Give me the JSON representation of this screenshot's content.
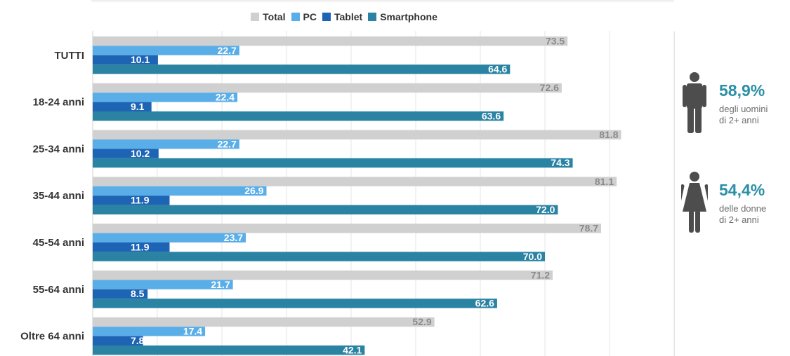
{
  "legend": [
    {
      "label": "Total",
      "color": "#d0d0d0"
    },
    {
      "label": "PC",
      "color": "#5aaee8"
    },
    {
      "label": "Tablet",
      "color": "#1e64b4"
    },
    {
      "label": "Smartphone",
      "color": "#2a83a3"
    }
  ],
  "chart_data": {
    "type": "bar",
    "orientation": "horizontal",
    "title": "",
    "xlabel": "",
    "ylabel": "",
    "xlim": [
      0,
      90
    ],
    "grid": true,
    "legend_position": "top",
    "categories": [
      "TUTTI",
      "18-24 anni",
      "25-34 anni",
      "35-44 anni",
      "45-54 anni",
      "55-64 anni",
      "Oltre 64 anni"
    ],
    "series": [
      {
        "name": "Total",
        "color": "#d0d0d0",
        "values": [
          73.5,
          72.6,
          81.8,
          81.1,
          78.7,
          71.2,
          52.9
        ]
      },
      {
        "name": "PC",
        "color": "#5aaee8",
        "values": [
          22.7,
          22.4,
          22.7,
          26.9,
          23.7,
          21.7,
          17.4
        ]
      },
      {
        "name": "Tablet",
        "color": "#1e64b4",
        "values": [
          10.1,
          9.1,
          10.2,
          11.9,
          11.9,
          8.5,
          7.8
        ]
      },
      {
        "name": "Smartphone",
        "color": "#2a83a3",
        "values": [
          64.6,
          63.6,
          74.3,
          72.0,
          70.0,
          62.6,
          42.1
        ]
      }
    ],
    "value_labels": [
      [
        "73.5",
        "22.7",
        "10.1",
        "64.6"
      ],
      [
        "72.6",
        "22.4",
        "9.1",
        "63.6"
      ],
      [
        "81.8",
        "22.7",
        "10.2",
        "74.3"
      ],
      [
        "81.1",
        "26.9",
        "11.9",
        "72.0"
      ],
      [
        "78.7",
        "23.7",
        "11.9",
        "70.0"
      ],
      [
        "71.2",
        "21.7",
        "8.5",
        "62.6"
      ],
      [
        "52.9",
        "17.4",
        "7.8",
        "42.1"
      ]
    ]
  },
  "gender_stats": {
    "men": {
      "value": "58,9%",
      "line1": "degli uomini",
      "line2": "di 2+ anni",
      "icon": "man-icon"
    },
    "women": {
      "value": "54,4%",
      "line1": "delle donne",
      "line2": "di 2+ anni",
      "icon": "woman-icon"
    }
  },
  "colors": {
    "accent": "#2b8fa6",
    "icon": "#4d4d4d",
    "muted_text": "#6d6d6d",
    "label_dark": "#333333"
  }
}
